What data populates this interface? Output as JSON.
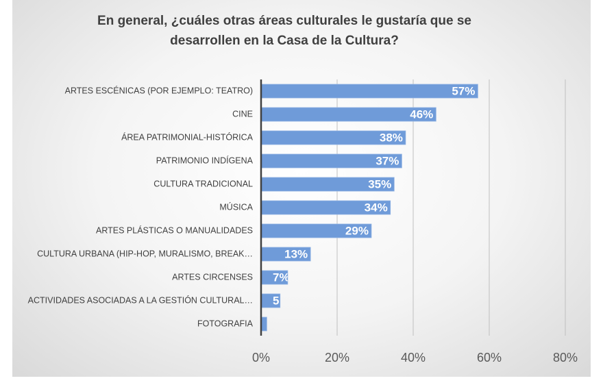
{
  "chart_data": {
    "type": "bar",
    "orientation": "horizontal",
    "title": "En general, ¿cuáles otras áreas culturales le gustaría que se desarrollen en la Casa de la Cultura?",
    "categories": [
      "ARTES ESCÉNICAS (POR EJEMPLO: TEATRO)",
      "CINE",
      "ÁREA PATRIMONIAL-HISTÓRICA",
      "PATRIMONIO INDÍGENA",
      "CULTURA TRADICIONAL",
      "MÚSICA",
      "ARTES PLÁSTICAS O MANUALIDADES",
      "CULTURA URBANA (HIP-HOP, MURALISMO, BREAK…",
      "ARTES CIRCENSES",
      "ACTIVIDADES ASOCIADAS A LA GESTIÓN CULTURAL…",
      "FOTOGRAFIA"
    ],
    "values": [
      57,
      46,
      38,
      37,
      35,
      34,
      29,
      13,
      7,
      5,
      1.5
    ],
    "value_labels": [
      "57%",
      "46%",
      "38%",
      "37%",
      "35%",
      "34%",
      "29%",
      "13%",
      "7%",
      "5",
      null
    ],
    "color": "#6f9bd9",
    "xlim": [
      0,
      80
    ],
    "xticks": [
      {
        "value": 0,
        "label": "0%"
      },
      {
        "value": 20,
        "label": "20%"
      },
      {
        "value": 40,
        "label": "40%"
      },
      {
        "value": 60,
        "label": "60%"
      },
      {
        "value": 80,
        "label": "80%"
      }
    ],
    "grid": true
  }
}
